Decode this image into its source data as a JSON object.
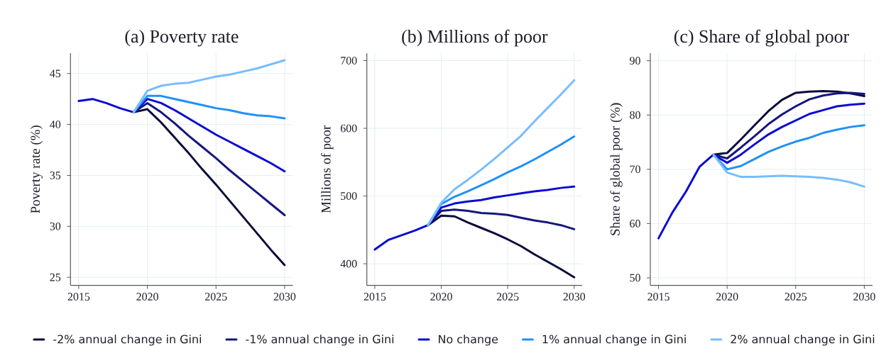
{
  "chart_data": [
    {
      "type": "line",
      "title": "(a) Poverty rate",
      "ylabel": "Poverty rate (%)",
      "x": [
        2015,
        2016,
        2017,
        2018,
        2019,
        2020,
        2021,
        2022,
        2023,
        2024,
        2025,
        2026,
        2027,
        2028,
        2029,
        2030
      ],
      "xlim": [
        2014.4,
        2030.6
      ],
      "ylim": [
        24.2,
        47.0
      ],
      "xticks": [
        2015,
        2020,
        2025,
        2030
      ],
      "yticks": [
        25,
        30,
        35,
        40,
        45
      ],
      "grid": true,
      "legend": "bottom",
      "series": [
        {
          "name": "-2% annual change in Gini",
          "color": "#0b0b3b",
          "values": [
            null,
            null,
            null,
            null,
            41.2,
            41.5,
            40.2,
            38.7,
            37.2,
            35.6,
            34.1,
            32.5,
            30.9,
            29.3,
            27.7,
            26.2
          ]
        },
        {
          "name": "-1% annual change in Gini",
          "color": "#16167e",
          "values": [
            null,
            null,
            null,
            null,
            41.2,
            42.1,
            41.2,
            40.1,
            38.9,
            37.8,
            36.7,
            35.5,
            34.4,
            33.3,
            32.2,
            31.1
          ]
        },
        {
          "name": "No change",
          "color": "#0a0ad2",
          "values": [
            42.3,
            42.5,
            42.1,
            41.6,
            41.2,
            42.5,
            42.1,
            41.4,
            40.6,
            39.8,
            39.0,
            38.3,
            37.6,
            36.9,
            36.2,
            35.4
          ]
        },
        {
          "name": "1% annual change in Gini",
          "color": "#2090fa",
          "values": [
            null,
            null,
            null,
            null,
            41.2,
            42.8,
            42.8,
            42.5,
            42.2,
            41.9,
            41.6,
            41.4,
            41.1,
            40.9,
            40.8,
            40.6
          ]
        },
        {
          "name": "2% annual change in Gini",
          "color": "#78bdff",
          "values": [
            null,
            null,
            null,
            null,
            41.2,
            43.3,
            43.8,
            44.0,
            44.1,
            44.4,
            44.7,
            44.9,
            45.2,
            45.5,
            45.9,
            46.3
          ]
        }
      ]
    },
    {
      "type": "line",
      "title": "(b) Millions of poor",
      "ylabel": "Millions of poor",
      "x": [
        2015,
        2016,
        2017,
        2018,
        2019,
        2020,
        2021,
        2022,
        2023,
        2024,
        2025,
        2026,
        2027,
        2028,
        2029,
        2030
      ],
      "xlim": [
        2014.4,
        2030.6
      ],
      "ylim": [
        368,
        711
      ],
      "xticks": [
        2015,
        2020,
        2025,
        2030
      ],
      "yticks": [
        400,
        500,
        600,
        700
      ],
      "grid": true,
      "series": [
        {
          "color": "#0b0b3b",
          "values": [
            null,
            null,
            null,
            null,
            457,
            471,
            470,
            461,
            453,
            445,
            436,
            426,
            414,
            403,
            392,
            380
          ]
        },
        {
          "color": "#16167e",
          "values": [
            null,
            null,
            null,
            null,
            457,
            478,
            480,
            478,
            475,
            474,
            472,
            468,
            464,
            461,
            457,
            451
          ]
        },
        {
          "color": "#0a0ad2",
          "values": [
            421,
            435,
            442,
            449,
            457,
            483,
            489,
            492,
            494,
            498,
            501,
            504,
            507,
            509,
            512,
            514
          ]
        },
        {
          "color": "#2090fa",
          "values": [
            null,
            null,
            null,
            null,
            457,
            488,
            499,
            507,
            516,
            525,
            535,
            544,
            554,
            565,
            576,
            588
          ]
        },
        {
          "color": "#78bdff",
          "values": [
            null,
            null,
            null,
            null,
            457,
            490,
            510,
            524,
            539,
            555,
            572,
            589,
            610,
            630,
            650,
            671
          ]
        }
      ]
    },
    {
      "type": "line",
      "title": "(c) Share of global poor",
      "ylabel": "Share of global poor (%)",
      "x": [
        2015,
        2016,
        2017,
        2018,
        2019,
        2020,
        2021,
        2022,
        2023,
        2024,
        2025,
        2026,
        2027,
        2028,
        2029,
        2030
      ],
      "xlim": [
        2014.4,
        2030.6
      ],
      "ylim": [
        48.6,
        91.4
      ],
      "xticks": [
        2015,
        2020,
        2025,
        2030
      ],
      "yticks": [
        50,
        60,
        70,
        80,
        90
      ],
      "grid": true,
      "series": [
        {
          "color": "#0b0b3b",
          "values": [
            null,
            null,
            null,
            null,
            72.7,
            73.0,
            75.5,
            78.1,
            80.7,
            82.8,
            84.1,
            84.3,
            84.4,
            84.3,
            84.0,
            83.5
          ]
        },
        {
          "color": "#16167e",
          "values": [
            null,
            null,
            null,
            null,
            72.7,
            72.0,
            74.0,
            76.1,
            78.3,
            80.1,
            81.6,
            82.9,
            83.6,
            84.0,
            84.1,
            83.9
          ]
        },
        {
          "color": "#0a0ad2",
          "values": [
            57.3,
            62.0,
            65.9,
            70.5,
            72.7,
            71.2,
            72.7,
            74.6,
            76.4,
            77.8,
            79.0,
            80.2,
            80.9,
            81.6,
            81.9,
            82.1
          ]
        },
        {
          "color": "#2090fa",
          "values": [
            null,
            null,
            null,
            null,
            72.7,
            70.0,
            70.6,
            71.9,
            73.2,
            74.2,
            75.1,
            75.8,
            76.7,
            77.3,
            77.8,
            78.1
          ]
        },
        {
          "color": "#78bdff",
          "values": [
            null,
            null,
            null,
            null,
            72.7,
            69.4,
            68.6,
            68.6,
            68.7,
            68.8,
            68.7,
            68.6,
            68.4,
            68.1,
            67.6,
            66.8
          ]
        }
      ]
    }
  ]
}
